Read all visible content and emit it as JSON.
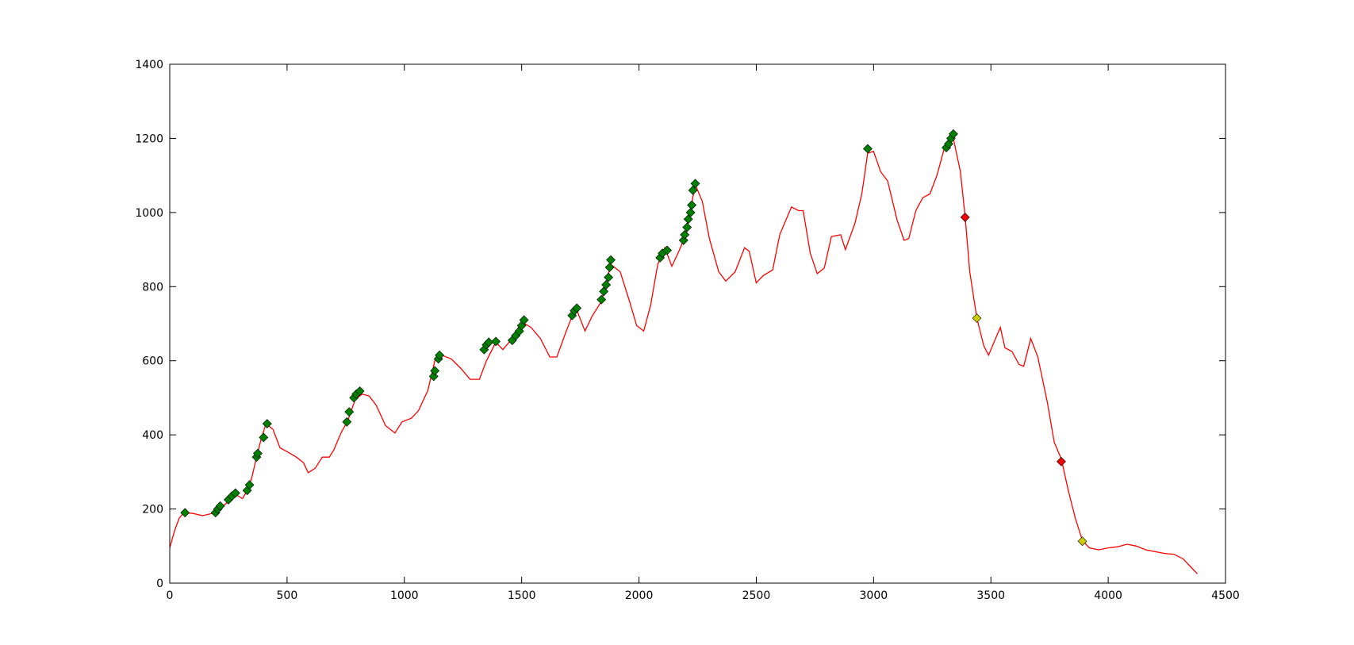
{
  "chart_data": {
    "type": "line",
    "xlim": [
      0,
      4500
    ],
    "ylim": [
      0,
      1400
    ],
    "xticks": [
      0,
      500,
      1000,
      1500,
      2000,
      2500,
      3000,
      3500,
      4000,
      4500
    ],
    "yticks": [
      0,
      200,
      400,
      600,
      800,
      1000,
      1200,
      1400
    ],
    "grid": false,
    "series": [
      {
        "color": "#ff0000",
        "marker": "none",
        "x": [
          0,
          20,
          40,
          60,
          100,
          140,
          180,
          200,
          240,
          280,
          310,
          330,
          350,
          370,
          390,
          410,
          440,
          470,
          500,
          540,
          570,
          590,
          620,
          650,
          680,
          700,
          730,
          760,
          790,
          820,
          850,
          880,
          920,
          960,
          990,
          1030,
          1060,
          1100,
          1130,
          1160,
          1200,
          1240,
          1280,
          1320,
          1350,
          1390,
          1420,
          1460,
          1500,
          1540,
          1580,
          1620,
          1650,
          1690,
          1730,
          1770,
          1800,
          1840,
          1880,
          1920,
          1960,
          1990,
          2020,
          2050,
          2080,
          2110,
          2140,
          2170,
          2200,
          2240,
          2270,
          2300,
          2340,
          2370,
          2410,
          2450,
          2470,
          2500,
          2530,
          2570,
          2600,
          2650,
          2680,
          2700,
          2730,
          2760,
          2790,
          2820,
          2860,
          2880,
          2920,
          2950,
          2975,
          3000,
          3030,
          3060,
          3100,
          3130,
          3150,
          3180,
          3210,
          3240,
          3270,
          3300,
          3340,
          3370,
          3390,
          3410,
          3440,
          3470,
          3490,
          3520,
          3540,
          3560,
          3590,
          3620,
          3640,
          3670,
          3700,
          3740,
          3770,
          3800,
          3830,
          3860,
          3890,
          3920,
          3960,
          4000,
          4040,
          4080,
          4120,
          4160,
          4200,
          4240,
          4280,
          4320,
          4350,
          4380
        ],
        "values": [
          95,
          140,
          175,
          190,
          188,
          182,
          188,
          195,
          215,
          240,
          228,
          250,
          285,
          340,
          390,
          430,
          415,
          365,
          355,
          340,
          325,
          298,
          310,
          340,
          340,
          360,
          405,
          440,
          495,
          510,
          505,
          480,
          425,
          405,
          435,
          445,
          465,
          520,
          600,
          615,
          605,
          580,
          550,
          550,
          600,
          650,
          630,
          660,
          705,
          690,
          660,
          610,
          610,
          680,
          745,
          680,
          720,
          760,
          860,
          840,
          760,
          695,
          680,
          750,
          860,
          905,
          855,
          895,
          940,
          1075,
          1030,
          930,
          840,
          815,
          840,
          905,
          895,
          810,
          830,
          845,
          940,
          1015,
          1005,
          1005,
          890,
          835,
          850,
          935,
          940,
          900,
          970,
          1050,
          1160,
          1165,
          1110,
          1085,
          980,
          925,
          930,
          1005,
          1040,
          1050,
          1100,
          1170,
          1200,
          1110,
          990,
          840,
          715,
          640,
          615,
          660,
          690,
          635,
          625,
          590,
          585,
          660,
          610,
          490,
          380,
          335,
          250,
          175,
          115,
          95,
          90,
          95,
          98,
          105,
          100,
          90,
          85,
          80,
          78,
          65,
          45,
          25
        ]
      },
      {
        "color": "#008000",
        "marker": "diamond",
        "x": [
          65,
          195,
          205,
          215,
          250,
          265,
          280,
          330,
          340,
          370,
          375,
          400,
          415,
          755,
          765,
          785,
          795,
          810,
          1125,
          1130,
          1145,
          1150,
          1340,
          1350,
          1360,
          1390,
          1460,
          1475,
          1490,
          1500,
          1510,
          1715,
          1725,
          1735,
          1840,
          1850,
          1860,
          1870,
          1875,
          1880,
          2090,
          2100,
          2120,
          2190,
          2195,
          2205,
          2210,
          2220,
          2225,
          2230,
          2240,
          2975,
          3310,
          3320,
          3330,
          3340
        ],
        "values": [
          190,
          190,
          200,
          208,
          225,
          235,
          243,
          250,
          265,
          340,
          350,
          393,
          430,
          435,
          462,
          500,
          510,
          518,
          558,
          573,
          605,
          615,
          630,
          643,
          650,
          652,
          655,
          668,
          680,
          695,
          710,
          722,
          735,
          742,
          765,
          787,
          805,
          825,
          852,
          872,
          878,
          890,
          898,
          925,
          940,
          960,
          982,
          1000,
          1020,
          1060,
          1078,
          1172,
          1175,
          1185,
          1200,
          1212
        ]
      },
      {
        "color": "#cccc00",
        "marker": "diamond",
        "x": [
          3440,
          3890
        ],
        "values": [
          715,
          113
        ]
      },
      {
        "color": "#ee0000",
        "marker": "diamond",
        "x": [
          3390,
          3800
        ],
        "values": [
          987,
          328
        ]
      }
    ]
  }
}
